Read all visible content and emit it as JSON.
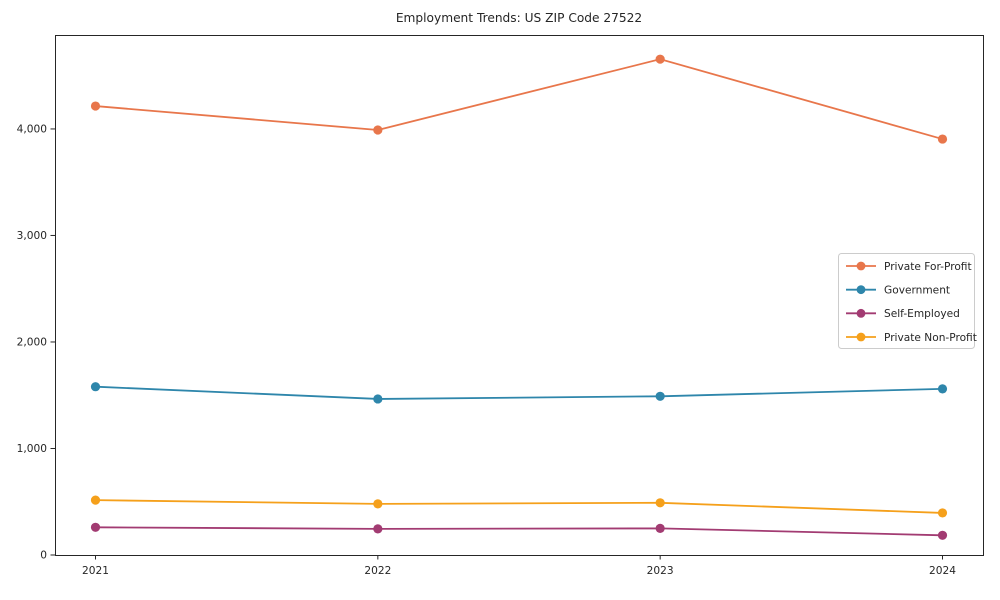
{
  "figure": {
    "background_color": "#ffffff",
    "axes_color": "#262626"
  },
  "chart_data": {
    "type": "line",
    "title": "Employment Trends: US ZIP Code 27522",
    "x": [
      2021,
      2022,
      2023,
      2024
    ],
    "x_tick_labels": [
      "2021",
      "2022",
      "2023",
      "2024"
    ],
    "yticks": [
      0,
      1000,
      2000,
      3000,
      4000
    ],
    "ytick_labels": [
      "0",
      "1,000",
      "2,000",
      "3,000",
      "4,000"
    ],
    "ylim": [
      0,
      4882
    ],
    "grid": false,
    "legend_position": "center-right",
    "series": [
      {
        "name": "Private For-Profit",
        "color": "#E8764B",
        "values": [
          4215,
          3990,
          4655,
          3905
        ]
      },
      {
        "name": "Government",
        "color": "#2E86AB",
        "values": [
          1580,
          1465,
          1490,
          1560
        ]
      },
      {
        "name": "Self-Employed",
        "color": "#A23B72",
        "values": [
          260,
          245,
          250,
          185
        ]
      },
      {
        "name": "Private Non-Profit",
        "color": "#F5A01B",
        "values": [
          515,
          480,
          490,
          395
        ]
      }
    ]
  }
}
